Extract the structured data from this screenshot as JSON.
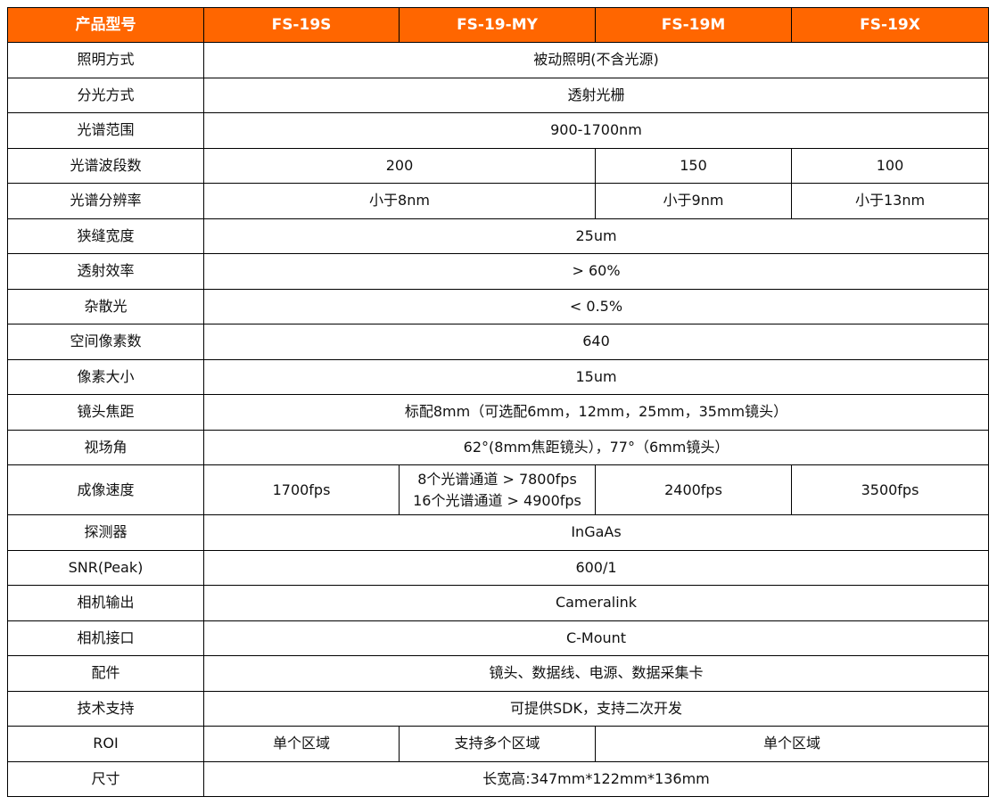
{
  "header_color": "#FF6600",
  "header": [
    "产品型号",
    "FS-19S",
    "FS-19-MY",
    "FS-19M",
    "FS-19X"
  ],
  "rows": [
    {
      "label": "照明方式",
      "cells": [
        {
          "text": "被动照明(不含光源)",
          "span": 4
        }
      ]
    },
    {
      "label": "分光方式",
      "cells": [
        {
          "text": "透射光栅",
          "span": 4
        }
      ]
    },
    {
      "label": "光谱范围",
      "cells": [
        {
          "text": "900-1700nm",
          "span": 4
        }
      ]
    },
    {
      "label": "光谱波段数",
      "cells": [
        {
          "text": "200",
          "span": 2
        },
        {
          "text": "150",
          "span": 1
        },
        {
          "text": "100",
          "span": 1
        }
      ]
    },
    {
      "label": "光谱分辨率",
      "cells": [
        {
          "text": "小于8nm",
          "span": 2
        },
        {
          "text": "小于9nm",
          "span": 1
        },
        {
          "text": "小于13nm",
          "span": 1
        }
      ]
    },
    {
      "label": "狭缝宽度",
      "cells": [
        {
          "text": "25um",
          "span": 4
        }
      ]
    },
    {
      "label": "透射效率",
      "cells": [
        {
          "text": "> 60%",
          "span": 4
        }
      ]
    },
    {
      "label": "杂散光",
      "cells": [
        {
          "text": "< 0.5%",
          "span": 4
        }
      ]
    },
    {
      "label": "空间像素数",
      "cells": [
        {
          "text": "640",
          "span": 4
        }
      ]
    },
    {
      "label": "像素大小",
      "cells": [
        {
          "text": "15um",
          "span": 4
        }
      ]
    },
    {
      "label": "镜头焦距",
      "cells": [
        {
          "text": "标配8mm（可选配6mm，12mm，25mm，35mm镜头）",
          "span": 4
        }
      ]
    },
    {
      "label": "视场角",
      "cells": [
        {
          "text": "62°(8mm焦距镜头），77°（6mm镜头）",
          "span": 4
        }
      ]
    },
    {
      "label": "成像速度",
      "tall": true,
      "cells": [
        {
          "text": "1700fps",
          "span": 1
        },
        {
          "lines": [
            "8个光谱通道 > 7800fps",
            "16个光谱通道 > 4900fps"
          ],
          "span": 1
        },
        {
          "text": "2400fps",
          "span": 1
        },
        {
          "text": "3500fps",
          "span": 1
        }
      ]
    },
    {
      "label": "探测器",
      "cells": [
        {
          "text": "InGaAs",
          "span": 4
        }
      ]
    },
    {
      "label": "SNR(Peak)",
      "cells": [
        {
          "text": "600/1",
          "span": 4
        }
      ]
    },
    {
      "label": "相机输出",
      "cells": [
        {
          "text": "Cameralink",
          "span": 4
        }
      ]
    },
    {
      "label": "相机接口",
      "cells": [
        {
          "text": "C-Mount",
          "span": 4
        }
      ]
    },
    {
      "label": "配件",
      "cells": [
        {
          "text": "镜头、数据线、电源、数据采集卡",
          "span": 4
        }
      ]
    },
    {
      "label": "技术支持",
      "cells": [
        {
          "text": "可提供SDK，支持二次开发",
          "span": 4
        }
      ]
    },
    {
      "label": "ROI",
      "cells": [
        {
          "text": "单个区域",
          "span": 1
        },
        {
          "text": "支持多个区域",
          "span": 1
        },
        {
          "text": "单个区域",
          "span": 2
        }
      ]
    },
    {
      "label": "尺寸",
      "cells": [
        {
          "text": "长宽高:347mm*122mm*136mm",
          "span": 4
        }
      ]
    }
  ]
}
